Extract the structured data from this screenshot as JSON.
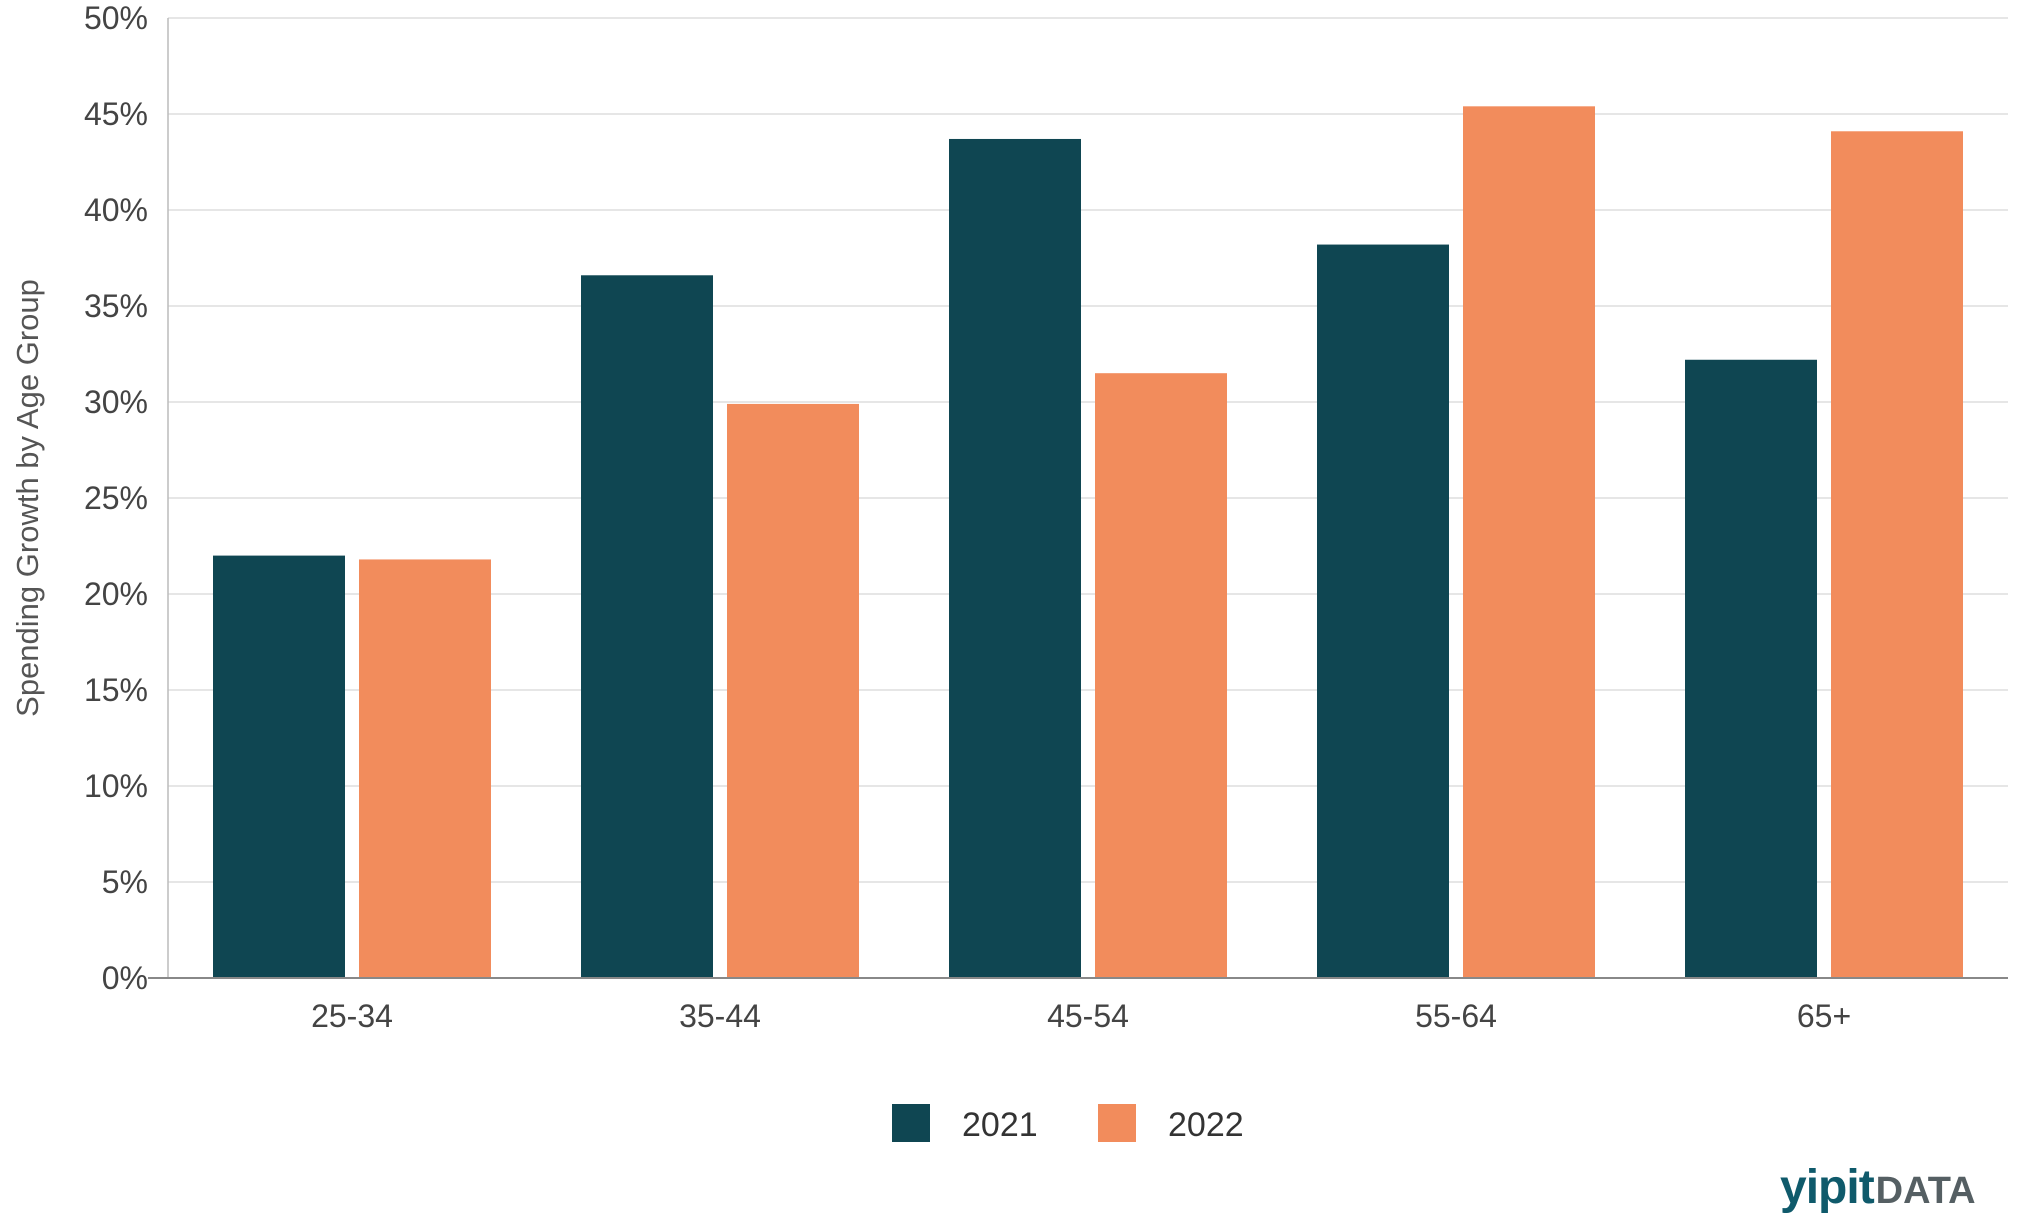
{
  "chart_data": {
    "type": "bar",
    "ylabel": "Spending Growth by Age Group",
    "categories": [
      "25-34",
      "35-44",
      "45-54",
      "55-64",
      "65+"
    ],
    "series": [
      {
        "name": "2021",
        "color": "#0f4652",
        "values": [
          22.0,
          36.6,
          43.7,
          38.2,
          32.2
        ]
      },
      {
        "name": "2022",
        "color": "#f28c5c",
        "values": [
          21.8,
          29.9,
          31.5,
          45.4,
          44.1
        ]
      }
    ],
    "ylim": [
      0,
      50
    ],
    "yticks": [
      "0%",
      "5%",
      "10%",
      "15%",
      "20%",
      "25%",
      "30%",
      "35%",
      "40%",
      "45%",
      "50%"
    ],
    "grid": true,
    "legend_position": "bottom-center"
  },
  "brand": {
    "part1": "yipit",
    "part2": "DATA"
  }
}
